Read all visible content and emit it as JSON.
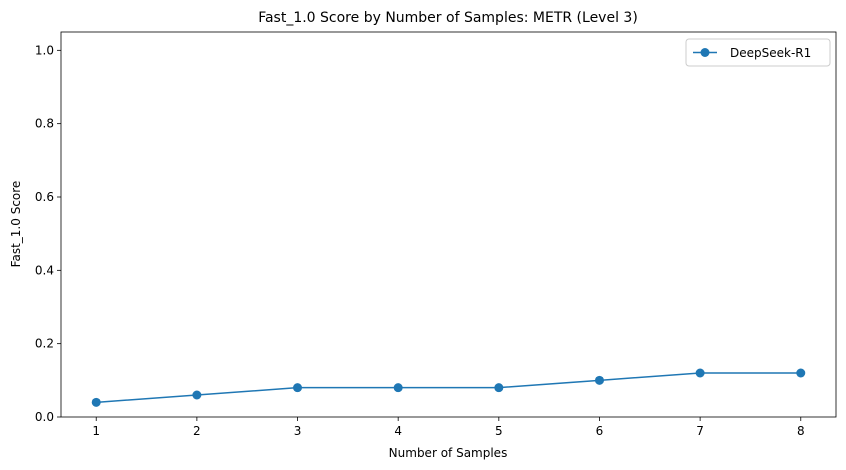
{
  "chart_data": {
    "type": "line",
    "title": "Fast_1.0 Score by Number of Samples: METR (Level 3)",
    "xlabel": "Number of Samples",
    "ylabel": "Fast_1.0 Score",
    "x": [
      1,
      2,
      3,
      4,
      5,
      6,
      7,
      8
    ],
    "xticks": [
      "1",
      "2",
      "3",
      "4",
      "5",
      "6",
      "7",
      "8"
    ],
    "yticks": [
      "0.0",
      "0.2",
      "0.4",
      "0.6",
      "0.8",
      "1.0"
    ],
    "xlim": [
      0.65,
      8.35
    ],
    "ylim": [
      0,
      1.05
    ],
    "grid": false,
    "legend_position": "top-right",
    "series": [
      {
        "name": "DeepSeek-R1",
        "color": "#1f77b4",
        "marker": "circle",
        "values": [
          0.04,
          0.06,
          0.08,
          0.08,
          0.08,
          0.1,
          0.12,
          0.12
        ]
      }
    ]
  }
}
